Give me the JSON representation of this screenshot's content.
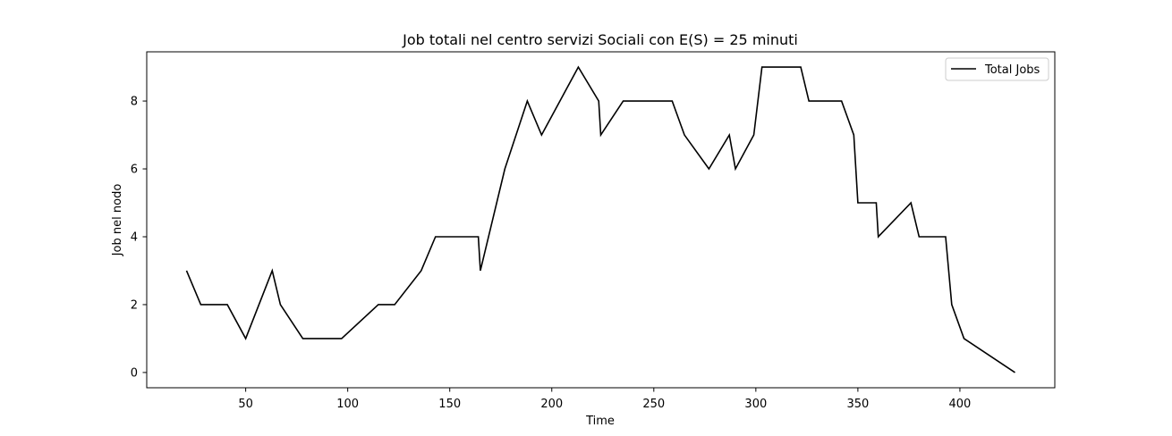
{
  "chart_data": {
    "type": "line",
    "title": "Job totali nel centro servizi Sociali con E(S) = 25 minuti",
    "xlabel": "Time",
    "ylabel": "Job nel nodo",
    "xlim": [
      1.5,
      446.5
    ],
    "ylim": [
      -0.45,
      9.45
    ],
    "xticks": [
      50,
      100,
      150,
      200,
      250,
      300,
      350,
      400
    ],
    "yticks": [
      0,
      2,
      4,
      6,
      8
    ],
    "grid": false,
    "legend_position": "top-right",
    "colors": {
      "series": "#000000",
      "background": "#ffffff",
      "axes": "#000000"
    },
    "series": [
      {
        "name": "Total Jobs",
        "x": [
          21,
          28,
          41,
          50,
          63,
          67,
          78,
          85,
          97,
          115,
          123,
          136,
          143,
          155,
          164,
          165,
          177,
          188,
          195,
          213,
          223,
          224,
          235,
          245,
          259,
          265,
          277,
          287,
          290,
          299,
          303,
          311,
          322,
          326,
          333,
          342,
          348,
          350,
          355,
          359,
          360,
          376,
          380,
          393,
          396,
          402,
          427
        ],
        "y": [
          3,
          2,
          2,
          1,
          3,
          2,
          1,
          1,
          1,
          2,
          2,
          3,
          4,
          4,
          4,
          3,
          6,
          8,
          7,
          9,
          8,
          7,
          8,
          8,
          8,
          7,
          6,
          7,
          6,
          7,
          9,
          9,
          9,
          8,
          8,
          8,
          7,
          5,
          5,
          5,
          4,
          5,
          4,
          4,
          2,
          1,
          0
        ]
      }
    ]
  }
}
